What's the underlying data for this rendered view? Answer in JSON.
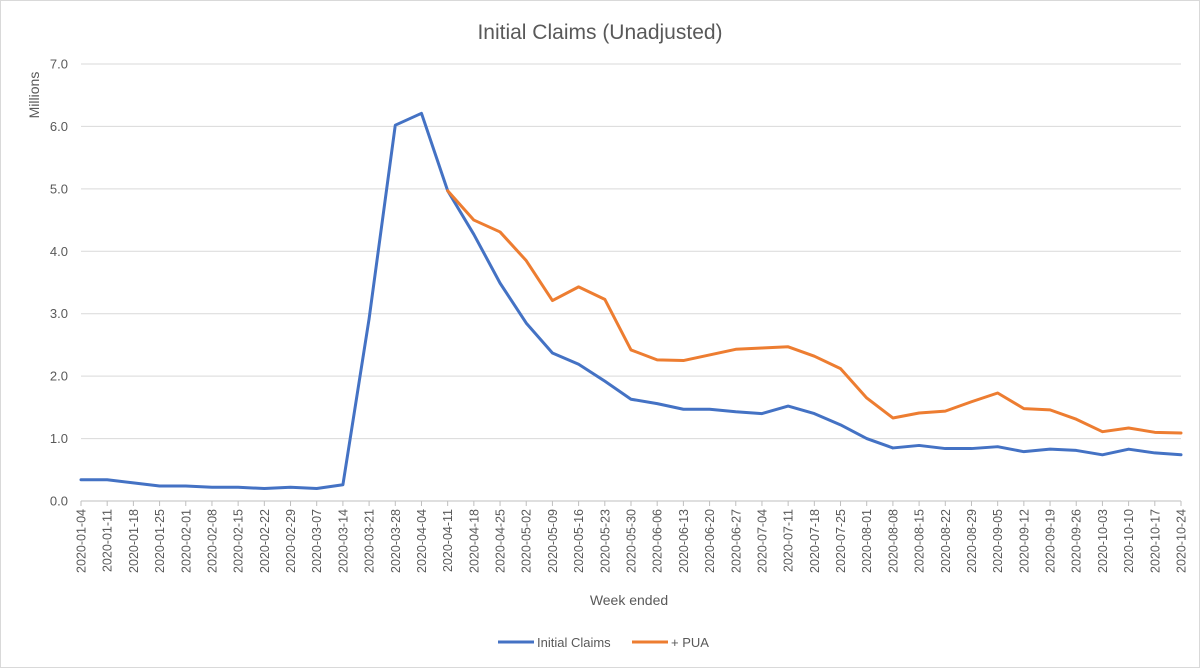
{
  "chart_data": {
    "type": "line",
    "title": "Initial Claims (Unadjusted)",
    "xlabel": "Week ended",
    "ylabel": "Millions",
    "ylim": [
      0,
      7
    ],
    "yticks": [
      "0.0",
      "1.0",
      "2.0",
      "3.0",
      "4.0",
      "5.0",
      "6.0",
      "7.0"
    ],
    "grid": true,
    "legend_position": "bottom",
    "categories": [
      "2020-01-04",
      "2020-01-11",
      "2020-01-18",
      "2020-01-25",
      "2020-02-01",
      "2020-02-08",
      "2020-02-15",
      "2020-02-22",
      "2020-02-29",
      "2020-03-07",
      "2020-03-14",
      "2020-03-21",
      "2020-03-28",
      "2020-04-04",
      "2020-04-11",
      "2020-04-18",
      "2020-04-25",
      "2020-05-02",
      "2020-05-09",
      "2020-05-16",
      "2020-05-23",
      "2020-05-30",
      "2020-06-06",
      "2020-06-13",
      "2020-06-20",
      "2020-06-27",
      "2020-07-04",
      "2020-07-11",
      "2020-07-18",
      "2020-07-25",
      "2020-08-01",
      "2020-08-08",
      "2020-08-15",
      "2020-08-22",
      "2020-08-29",
      "2020-09-05",
      "2020-09-12",
      "2020-09-19",
      "2020-09-26",
      "2020-10-03",
      "2020-10-10",
      "2020-10-17",
      "2020-10-24"
    ],
    "series": [
      {
        "name": "Initial Claims",
        "color": "#4472C4",
        "values": [
          0.34,
          0.34,
          0.29,
          0.24,
          0.24,
          0.22,
          0.22,
          0.2,
          0.22,
          0.2,
          0.26,
          2.92,
          6.02,
          6.21,
          4.97,
          4.27,
          3.49,
          2.85,
          2.37,
          2.19,
          1.92,
          1.63,
          1.56,
          1.47,
          1.47,
          1.43,
          1.4,
          1.52,
          1.4,
          1.22,
          1.0,
          0.85,
          0.89,
          0.84,
          0.84,
          0.87,
          0.79,
          0.83,
          0.81,
          0.74,
          0.83,
          0.77,
          0.74
        ]
      },
      {
        "name": "+ PUA",
        "color": "#ED7D31",
        "values": [
          null,
          null,
          null,
          null,
          null,
          null,
          null,
          null,
          null,
          null,
          null,
          null,
          null,
          null,
          4.97,
          4.5,
          4.31,
          3.85,
          3.21,
          3.43,
          3.23,
          2.42,
          2.26,
          2.25,
          2.34,
          2.43,
          2.45,
          2.47,
          2.32,
          2.12,
          1.65,
          1.33,
          1.41,
          1.44,
          1.59,
          1.73,
          1.48,
          1.46,
          1.31,
          1.11,
          1.17,
          1.1,
          1.09
        ]
      }
    ]
  }
}
